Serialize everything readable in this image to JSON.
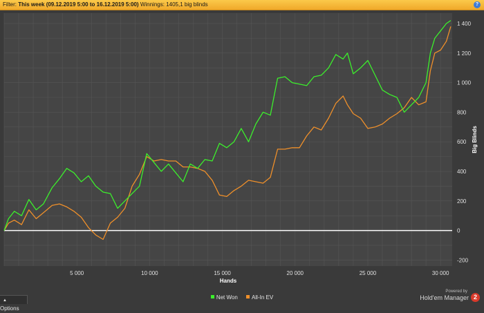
{
  "filter": {
    "label": "Filter:",
    "value": "This week (09.12.2019 5:00 to 16.12.2019 5:00)",
    "winnings_label": "Winnings:",
    "winnings_value": "1405,1 big blinds"
  },
  "help_icon_text": "?",
  "options_label": "Options",
  "brand": {
    "powered": "Powered by",
    "name": "Hold'em Manager",
    "icon_text": "2"
  },
  "colors": {
    "net_won": "#3cf02c",
    "all_in_ev": "#f0902a",
    "zero_line": "#ffffff",
    "plot_bg": "#454545",
    "grid": "#565656"
  },
  "chart_data": {
    "type": "line",
    "xlabel": "Hands",
    "ylabel": "Big Blinds",
    "xlim": [
      0,
      30800
    ],
    "ylim": [
      -240,
      1470
    ],
    "x_ticks": [
      5000,
      10000,
      15000,
      20000,
      25000,
      30000
    ],
    "x_tick_labels": [
      "5 000",
      "10 000",
      "15 000",
      "20 000",
      "25 000",
      "30 000"
    ],
    "y_ticks": [
      -200,
      0,
      200,
      400,
      600,
      800,
      1000,
      1200,
      1400
    ],
    "y_tick_labels": [
      "-200",
      "0",
      "200",
      "400",
      "600",
      "800",
      "1 000",
      "1 200",
      "1 400"
    ],
    "y_axis_side": "right",
    "grid": true,
    "legend": "bottom-center",
    "x": [
      0,
      300,
      700,
      1200,
      1700,
      2200,
      2700,
      3300,
      3800,
      4300,
      4800,
      5300,
      5800,
      6300,
      6800,
      7300,
      7800,
      8300,
      8800,
      9300,
      9800,
      10300,
      10800,
      11300,
      11800,
      12300,
      12800,
      13300,
      13800,
      14300,
      14800,
      15300,
      15800,
      16300,
      16800,
      17300,
      17800,
      18300,
      18800,
      19300,
      19800,
      20300,
      20800,
      21300,
      21800,
      22300,
      22800,
      23300,
      23600,
      24000,
      24500,
      25000,
      25500,
      26000,
      26500,
      27000,
      27500,
      28000,
      28500,
      29000,
      29300,
      29600,
      30000,
      30400,
      30700
    ],
    "series": [
      {
        "name": "Net Won",
        "values": [
          0,
          80,
          130,
          100,
          210,
          140,
          180,
          290,
          350,
          420,
          390,
          330,
          370,
          300,
          260,
          250,
          150,
          200,
          250,
          300,
          520,
          460,
          400,
          450,
          390,
          330,
          450,
          420,
          480,
          470,
          590,
          560,
          600,
          690,
          600,
          720,
          800,
          780,
          1030,
          1040,
          1000,
          990,
          980,
          1040,
          1050,
          1100,
          1190,
          1160,
          1200,
          1060,
          1100,
          1150,
          1050,
          950,
          920,
          900,
          800,
          850,
          900,
          1000,
          1200,
          1300,
          1350,
          1400,
          1420
        ]
      },
      {
        "name": "All-In EV",
        "values": [
          0,
          50,
          70,
          40,
          140,
          80,
          120,
          170,
          180,
          160,
          130,
          90,
          20,
          -30,
          -60,
          50,
          90,
          150,
          300,
          380,
          500,
          470,
          480,
          470,
          470,
          430,
          430,
          420,
          400,
          340,
          240,
          230,
          270,
          300,
          340,
          330,
          320,
          360,
          550,
          550,
          560,
          560,
          640,
          700,
          680,
          760,
          860,
          910,
          850,
          790,
          760,
          690,
          700,
          720,
          760,
          790,
          830,
          900,
          850,
          870,
          1080,
          1200,
          1220,
          1280,
          1380
        ]
      }
    ],
    "zero_line": 0
  }
}
